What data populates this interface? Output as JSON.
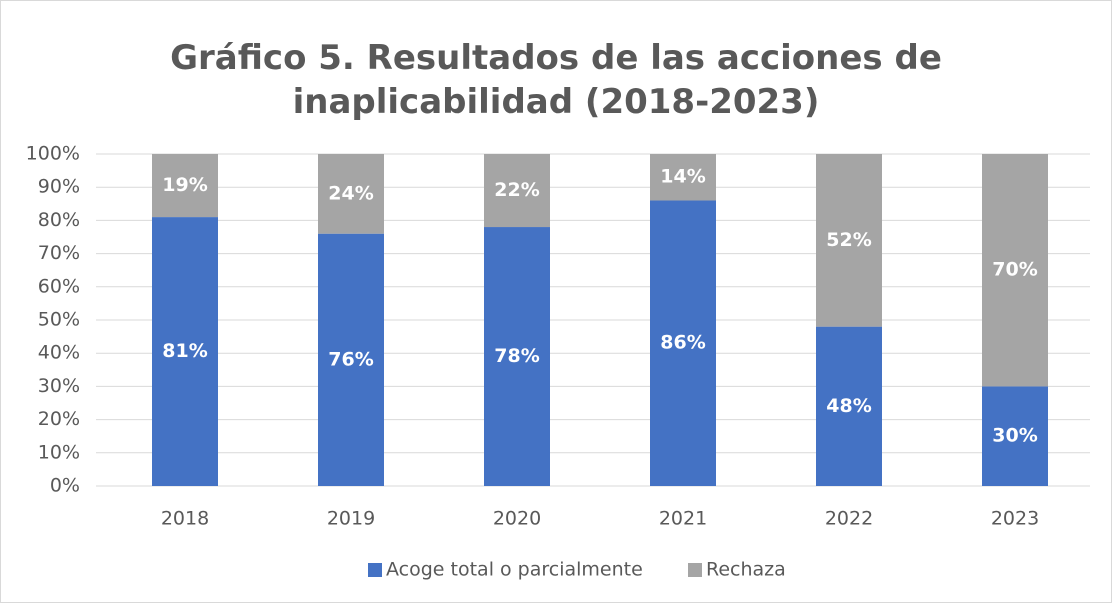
{
  "chart_data": {
    "type": "stacked_bar",
    "title": "Gráfico 5. Resultados de las acciones de inaplicabilidad (2018-2023)",
    "categories": [
      "2018",
      "2019",
      "2020",
      "2021",
      "2022",
      "2023"
    ],
    "series": [
      {
        "name": "Acoge total o parcialmente",
        "color": "#4472c4",
        "values": [
          81,
          76,
          78,
          86,
          48,
          30
        ],
        "value_labels": [
          "81%",
          "76%",
          "78%",
          "86%",
          "48%",
          "30%"
        ]
      },
      {
        "name": "Rechaza",
        "color": "#a5a5a5",
        "values": [
          19,
          24,
          22,
          14,
          52,
          70
        ],
        "value_labels": [
          "19%",
          "24%",
          "22%",
          "14%",
          "52%",
          "70%"
        ]
      }
    ],
    "ylim": [
      0,
      100
    ],
    "yticks": [
      {
        "value": 0,
        "label": "0%"
      },
      {
        "value": 10,
        "label": "10%"
      },
      {
        "value": 20,
        "label": "20%"
      },
      {
        "value": 30,
        "label": "30%"
      },
      {
        "value": 40,
        "label": "40%"
      },
      {
        "value": 50,
        "label": "50%"
      },
      {
        "value": 60,
        "label": "60%"
      },
      {
        "value": 70,
        "label": "70%"
      },
      {
        "value": 80,
        "label": "80%"
      },
      {
        "value": 90,
        "label": "90%"
      },
      {
        "value": 100,
        "label": "100%"
      }
    ],
    "grid": true,
    "legend": "bottom"
  }
}
